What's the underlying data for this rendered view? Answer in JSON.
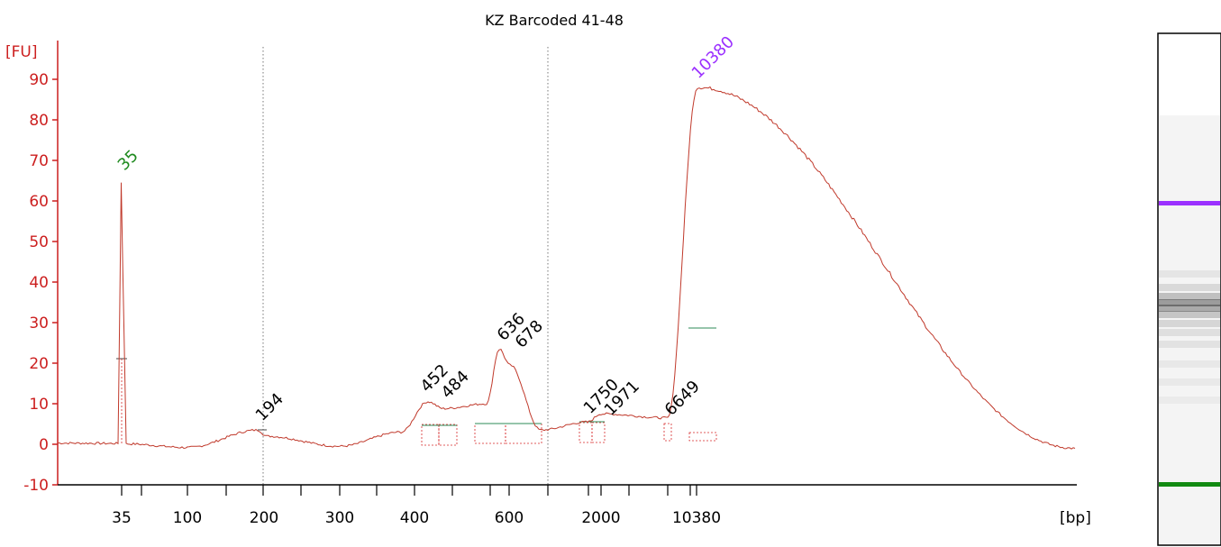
{
  "chart_data": {
    "type": "line",
    "title": "KZ Barcoded 41-48",
    "ylabel": "[FU]",
    "xlabel": "[bp]",
    "ylim": [
      -10,
      95
    ],
    "yticks": [
      -10,
      0,
      10,
      20,
      30,
      40,
      50,
      60,
      70,
      80,
      90
    ],
    "xtick_labels": [
      "35",
      "100",
      "200",
      "300",
      "400",
      "600",
      "2000",
      "10380"
    ],
    "grid": false,
    "legend": "none",
    "series": [
      {
        "color": "#c0392b",
        "points": [
          {
            "x": "start",
            "y": 0.3
          },
          {
            "x": "35",
            "y": 0.2
          },
          {
            "x": "35",
            "y": 64.5
          },
          {
            "x": "35+",
            "y": 0.1
          },
          {
            "x": "100",
            "y": -0.8
          },
          {
            "x": "194",
            "y": 3.5
          },
          {
            "x": "200",
            "y": 2.0
          },
          {
            "x": "300",
            "y": -0.5
          },
          {
            "x": "400",
            "y": 3.0
          },
          {
            "x": "452",
            "y": 10.5
          },
          {
            "x": "484",
            "y": 8.8
          },
          {
            "x": "600",
            "y": 10.0
          },
          {
            "x": "636",
            "y": 23.5
          },
          {
            "x": "678",
            "y": 19.5
          },
          {
            "x": "800",
            "y": 3.5
          },
          {
            "x": "1750",
            "y": 5.5
          },
          {
            "x": "1971",
            "y": 7.5
          },
          {
            "x": "6649",
            "y": 6.5
          },
          {
            "x": "10380",
            "y": 88.0
          },
          {
            "x": "end",
            "y": -1.0
          }
        ]
      }
    ],
    "peaks": [
      {
        "label": "35",
        "y": 64.5,
        "color": "#1f8a1f",
        "marker": true
      },
      {
        "label": "194",
        "y": 3.5,
        "color": "#000000"
      },
      {
        "label": "452",
        "y": 10.5,
        "color": "#000000"
      },
      {
        "label": "484",
        "y": 8.8,
        "color": "#000000"
      },
      {
        "label": "636",
        "y": 23.5,
        "color": "#000000"
      },
      {
        "label": "678",
        "y": 19.5,
        "color": "#000000"
      },
      {
        "label": "1750",
        "y": 5.5,
        "color": "#000000"
      },
      {
        "label": "1971",
        "y": 7.5,
        "color": "#000000"
      },
      {
        "label": "6649",
        "y": 6.5,
        "color": "#000000"
      },
      {
        "label": "10380",
        "y": 88.0,
        "color": "#9b30ff",
        "marker": true
      }
    ],
    "gel": {
      "upper_marker_color": "#9b30ff",
      "lower_marker_color": "#118a11"
    },
    "colors": {
      "axis": "#cc1f1f",
      "trace": "#c0392b",
      "region": "#d62728",
      "baseline": "#2e8b57"
    }
  }
}
